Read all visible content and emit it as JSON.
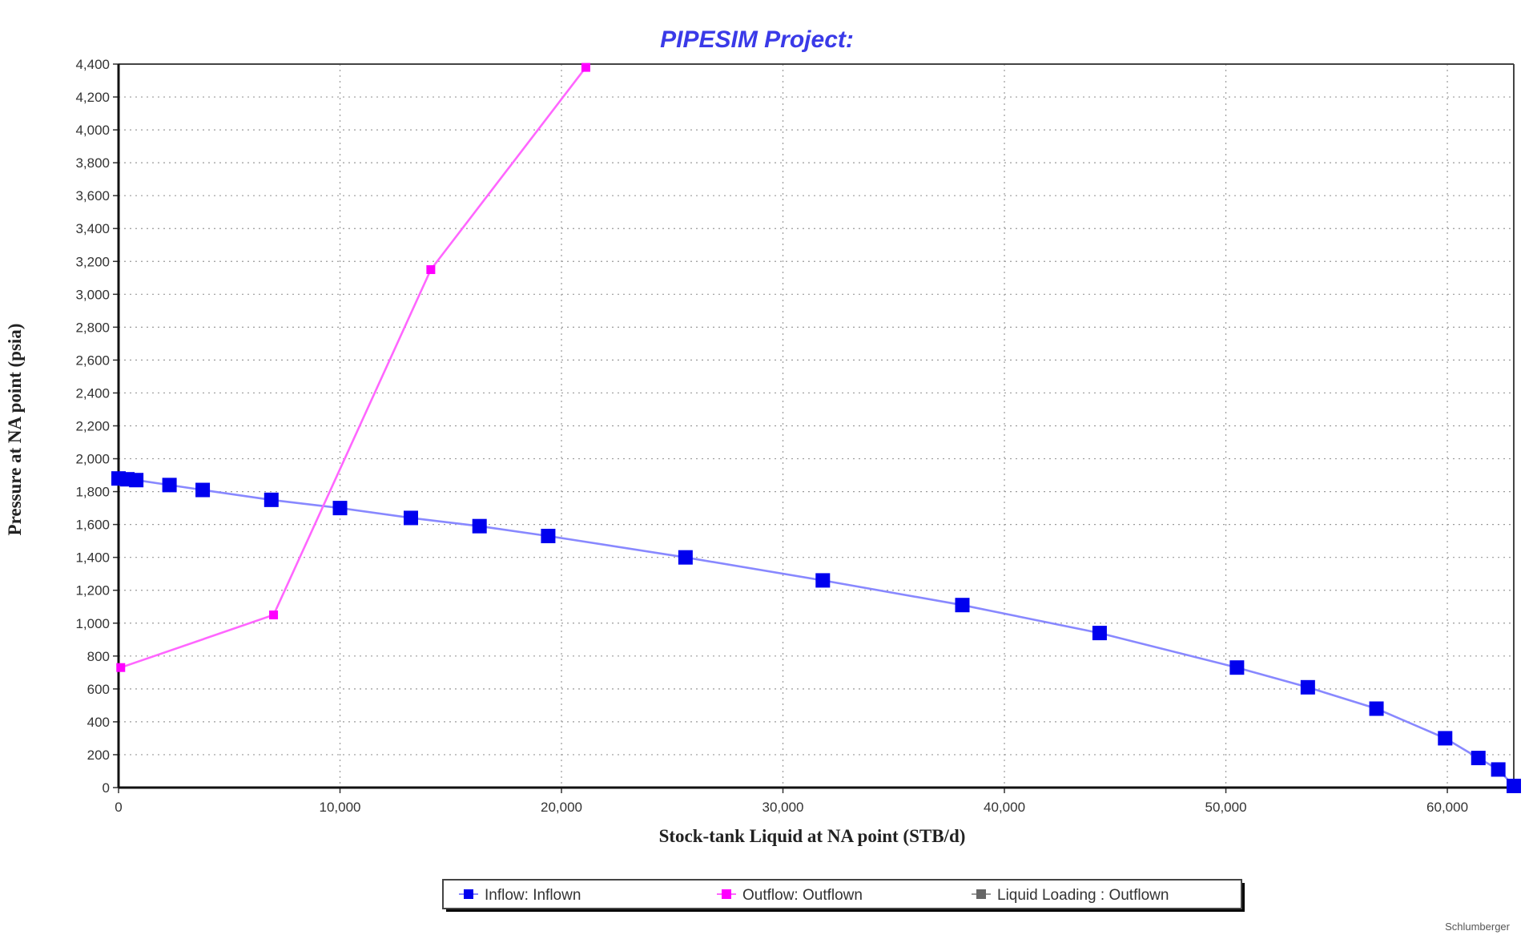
{
  "chart_data": {
    "type": "line",
    "title": "PIPESIM Project:",
    "xlabel": "Stock-tank Liquid at NA point (STB/d)",
    "ylabel": "Pressure at NA point (psia)",
    "xlim": [
      0,
      63000
    ],
    "ylim": [
      0,
      4400
    ],
    "x_ticks": [
      "0",
      "10,000",
      "20,000",
      "30,000",
      "40,000",
      "50,000",
      "60,000"
    ],
    "x_tick_values": [
      0,
      10000,
      20000,
      30000,
      40000,
      50000,
      60000
    ],
    "y_ticks": [
      "0",
      "200",
      "400",
      "600",
      "800",
      "1,000",
      "1,200",
      "1,400",
      "1,600",
      "1,800",
      "2,000",
      "2,200",
      "2,400",
      "2,600",
      "2,800",
      "3,000",
      "3,200",
      "3,400",
      "3,600",
      "3,800",
      "4,000",
      "4,200",
      "4,400"
    ],
    "y_tick_values": [
      0,
      200,
      400,
      600,
      800,
      1000,
      1200,
      1400,
      1600,
      1800,
      2000,
      2200,
      2400,
      2600,
      2800,
      3000,
      3200,
      3400,
      3600,
      3800,
      4000,
      4200,
      4400
    ],
    "grid": true,
    "legend_position": "bottom",
    "series": [
      {
        "name": "Inflow: Inflown",
        "color": "#0000ee",
        "line_color": "#8888ff",
        "marker": "square",
        "x": [
          0,
          400,
          800,
          2300,
          3800,
          6900,
          10000,
          13200,
          16300,
          19400,
          25600,
          31800,
          38100,
          44300,
          50500,
          53700,
          56800,
          59900,
          61400,
          62300,
          63000
        ],
        "y": [
          1880,
          1875,
          1870,
          1840,
          1810,
          1750,
          1700,
          1640,
          1590,
          1530,
          1400,
          1260,
          1110,
          940,
          730,
          610,
          480,
          300,
          180,
          110,
          10
        ]
      },
      {
        "name": "Outflow: Outflown",
        "color": "#ff00ff",
        "line_color": "#ff66ff",
        "marker": "square",
        "x": [
          100,
          7000,
          14100,
          21100
        ],
        "y": [
          730,
          1050,
          3150,
          4380
        ]
      },
      {
        "name": "Liquid Loading : Outflown",
        "color": "#666666",
        "line_color": "#999999",
        "marker": "square",
        "x": [],
        "y": []
      }
    ]
  },
  "footer": {
    "watermark": "Schlumberger"
  }
}
